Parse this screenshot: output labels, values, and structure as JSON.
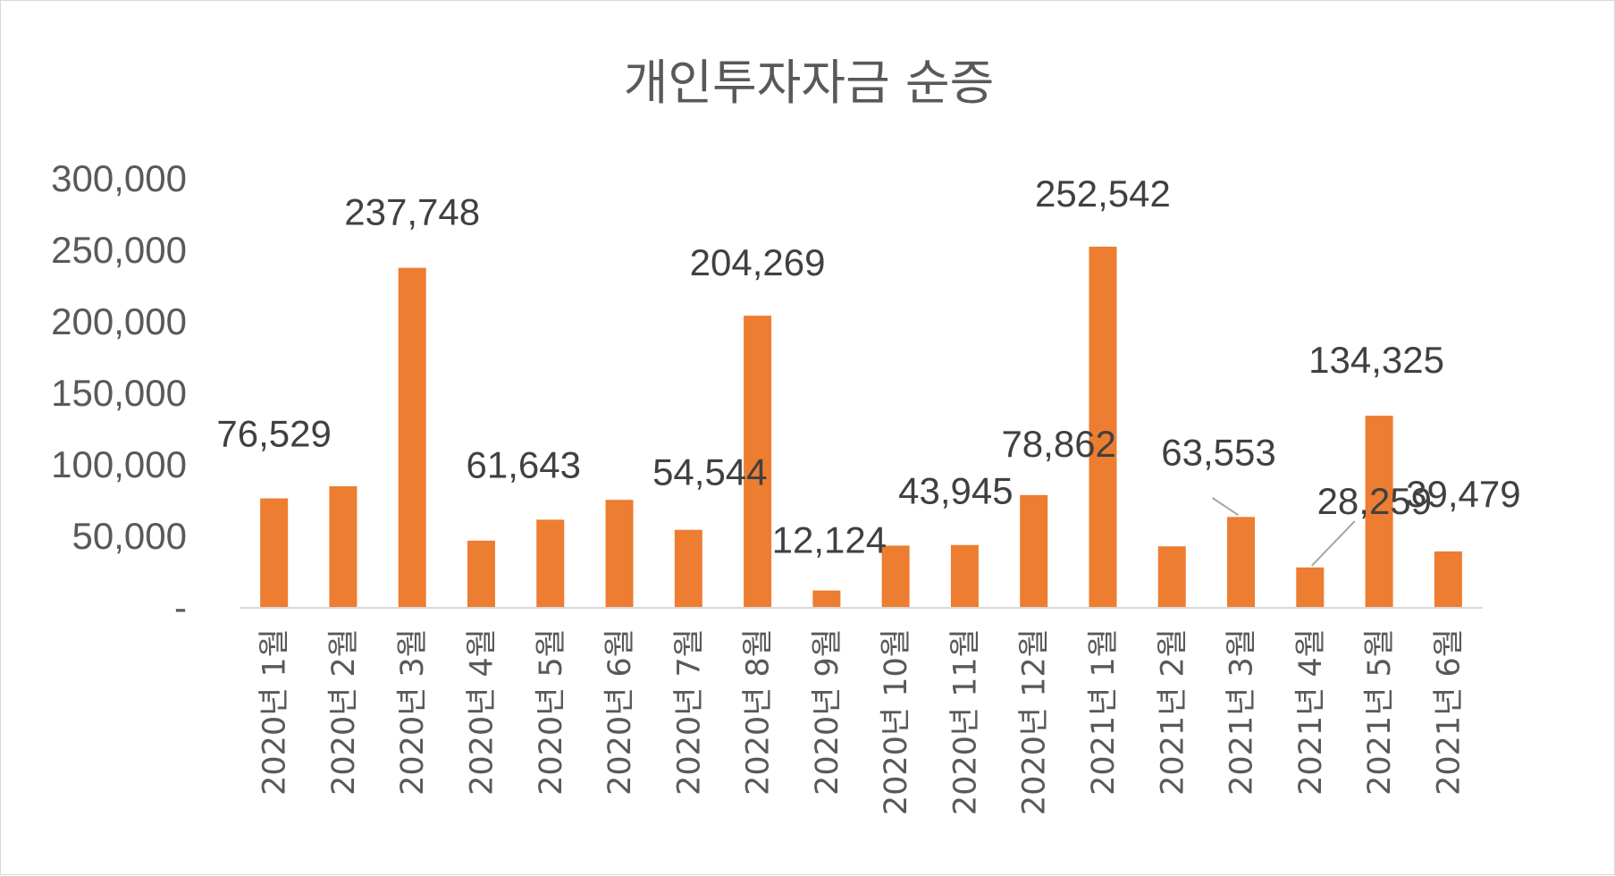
{
  "chart_data": {
    "type": "bar",
    "title": "개인투자자금 순증",
    "categories": [
      "2020년 1월",
      "2020년 2월",
      "2020년 3월",
      "2020년 4월",
      "2020년 5월",
      "2020년 6월",
      "2020년 7월",
      "2020년 8월",
      "2020년 9월",
      "2020년 10월",
      "2020년 11월",
      "2020년 12월",
      "2021년 1월",
      "2021년 2월",
      "2021년 3월",
      "2021년 4월",
      "2021년 5월",
      "2021년 6월"
    ],
    "values": [
      76529,
      85000,
      237748,
      47000,
      61643,
      75500,
      54544,
      204269,
      12124,
      43500,
      43945,
      78862,
      252542,
      43000,
      63553,
      28259,
      134325,
      39479
    ],
    "data_labels": [
      "76,529",
      null,
      "237,748",
      null,
      "61,643",
      null,
      "54,544",
      "204,269",
      "12,124",
      null,
      "43,945",
      "78,862",
      "252,542",
      null,
      "63,553",
      "28,259",
      "134,325",
      "39,479"
    ],
    "ylim": [
      0,
      300000
    ],
    "yticks": [
      0,
      50000,
      100000,
      150000,
      200000,
      250000,
      300000
    ],
    "ytick_labels": [
      "-",
      "50,000",
      "100,000",
      "150,000",
      "200,000",
      "250,000",
      "300,000"
    ],
    "xlabel": "",
    "ylabel": "",
    "grid": false,
    "bar_color": "#ed7d31"
  }
}
